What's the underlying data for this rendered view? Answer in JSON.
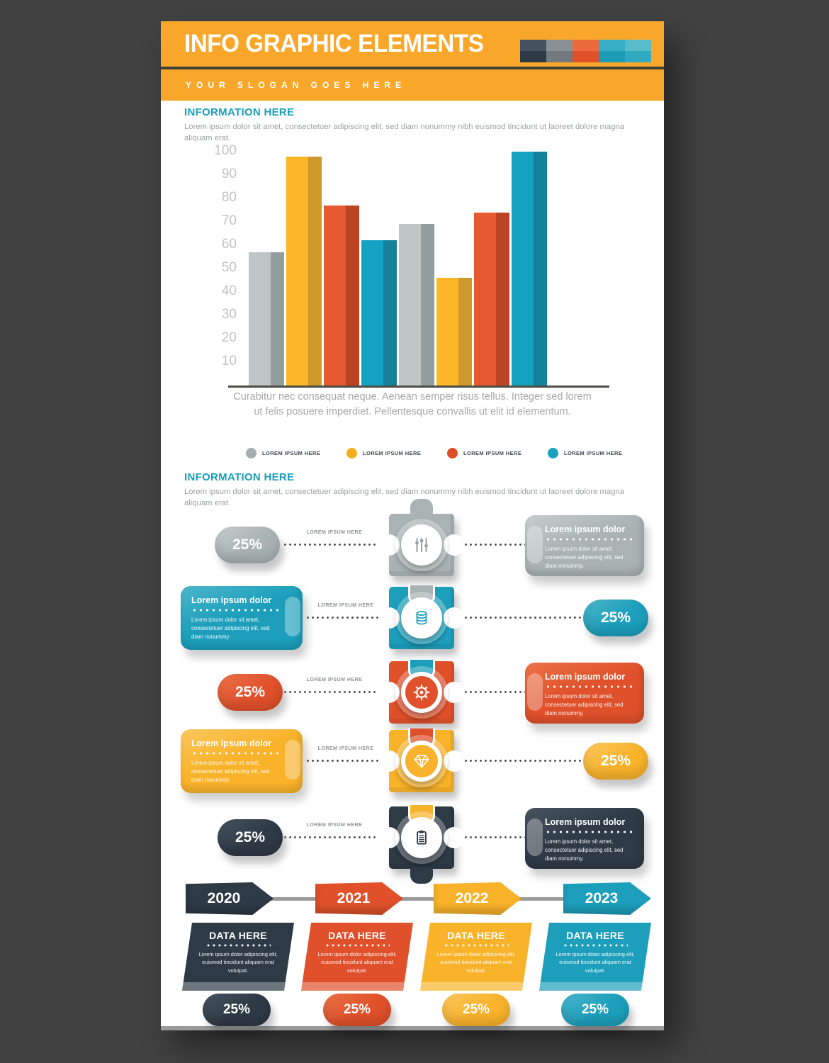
{
  "palette": {
    "header": "#f9a72b",
    "navy": "#2e3a46",
    "gray": "#a9b3b3",
    "orange": "#e0512b",
    "yellow": "#f9b32b",
    "teal": "#1d9fbc"
  },
  "header": {
    "title": "INFO GRAPHIC ELEMENTS",
    "slogan": "YOUR SLOGAN GOES HERE",
    "swatches": [
      [
        "#46525e",
        "#2e3a46"
      ],
      [
        "#8a9194",
        "#73797c"
      ],
      [
        "#ec6a3c",
        "#e0512b"
      ],
      [
        "#35aec6",
        "#1d9cb8"
      ],
      [
        "#58bcca",
        "#2fa9bf"
      ]
    ]
  },
  "section1": {
    "heading": "INFORMATION HERE",
    "body": "Lorem ipsum dolor sit amet, consectetuer adipiscing elit, sed diam nonummy nibh euismod tincidunt ut laoreet dolore magna aliquam erat."
  },
  "chart_data": {
    "type": "bar",
    "values": [
      57,
      98,
      77,
      62,
      69,
      46,
      74,
      100
    ],
    "series_colors": [
      [
        "#bdc5c5",
        "#939d9d"
      ],
      [
        "#fcb628",
        "#cf982b"
      ],
      [
        "#e55a31",
        "#bc4423"
      ],
      [
        "#14a2c2",
        "#15809a"
      ],
      [
        "#bdc5c5",
        "#939d9d"
      ],
      [
        "#fcb628",
        "#cf982b"
      ],
      [
        "#e55a31",
        "#bc4423"
      ],
      [
        "#14a2c2",
        "#15809a"
      ]
    ],
    "yticks": [
      100,
      90,
      80,
      70,
      60,
      50,
      40,
      30,
      20,
      10
    ],
    "ylim": [
      0,
      100
    ],
    "grid": false,
    "legend_position": "bottom",
    "legend": [
      {
        "label": "LOREM IPSUM HERE",
        "color": "#a5afaf"
      },
      {
        "label": "LOREM IPSUM HERE",
        "color": "#f5ac1e"
      },
      {
        "label": "LOREM IPSUM HERE",
        "color": "#dd4d26"
      },
      {
        "label": "LOREM IPSUM HERE",
        "color": "#1ca0bf"
      }
    ],
    "caption": "Curabitur nec consequat neque. Aenean semper risus tellus. Integer sed lorem ut felis posuere imperdiet. Pellentesque convallis ut elit id elementum."
  },
  "section2": {
    "heading": "INFORMATION HERE",
    "body": "Lorem ipsum dolor sit amet, consectetuer adipiscing elit, sed diam nonummy nibh euismod tincidunt ut laoreet dolore magna aliquam erat."
  },
  "timeline": {
    "connector_label": "LOREM IPSUM HERE",
    "rows": [
      {
        "color": "gray",
        "icon": "sliders",
        "value": "25%",
        "card_title": "Lorem ipsum dolor",
        "card_body": "Lorem ipsum dolor sit amet, consectetuer adipiscing elit, sed diam nonummy."
      },
      {
        "color": "teal",
        "icon": "coins",
        "value": "25%",
        "card_title": "Lorem ipsum dolor",
        "card_body": "Lorem ipsum dolor sit amet, consectetuer adipiscing elit, sed diam nonummy."
      },
      {
        "color": "orange",
        "icon": "gear",
        "value": "25%",
        "card_title": "Lorem ipsum dolor",
        "card_body": "Lorem ipsum dolor sit amet, consectetuer adipiscing elit, sed diam nonummy."
      },
      {
        "color": "yellow",
        "icon": "diamond",
        "value": "25%",
        "card_title": "Lorem ipsum dolor",
        "card_body": "Lorem ipsum dolor sit amet, consectetuer adipiscing elit, sed diam nonummy."
      },
      {
        "color": "navy",
        "icon": "clipboard",
        "value": "25%",
        "card_title": "Lorem ipsum dolor",
        "card_body": "Lorem ipsum dolor sit amet, consectetuer adipiscing elit, sed diam nonummy."
      }
    ]
  },
  "years": [
    "2020",
    "2021",
    "2022",
    "2023"
  ],
  "data_cards": [
    {
      "color": "navy",
      "title": "DATA HERE",
      "body": "Lorem ipsum dolor adipiscing elit, euismod tincidunt aliquam erat volutpat.",
      "value": "25%"
    },
    {
      "color": "orange",
      "title": "DATA HERE",
      "body": "Lorem ipsum dolor adipiscing elit, euismod tincidunt aliquam erat volutpat.",
      "value": "25%"
    },
    {
      "color": "yellow",
      "title": "DATA HERE",
      "body": "Lorem ipsum dolor adipiscing elit, euismod tincidunt aliquam erat volutpat.",
      "value": "25%"
    },
    {
      "color": "teal",
      "title": "DATA HERE",
      "body": "Lorem ipsum dolor adipiscing elit, euismod tincidunt aliquam erat volutpat.",
      "value": "25%"
    }
  ]
}
